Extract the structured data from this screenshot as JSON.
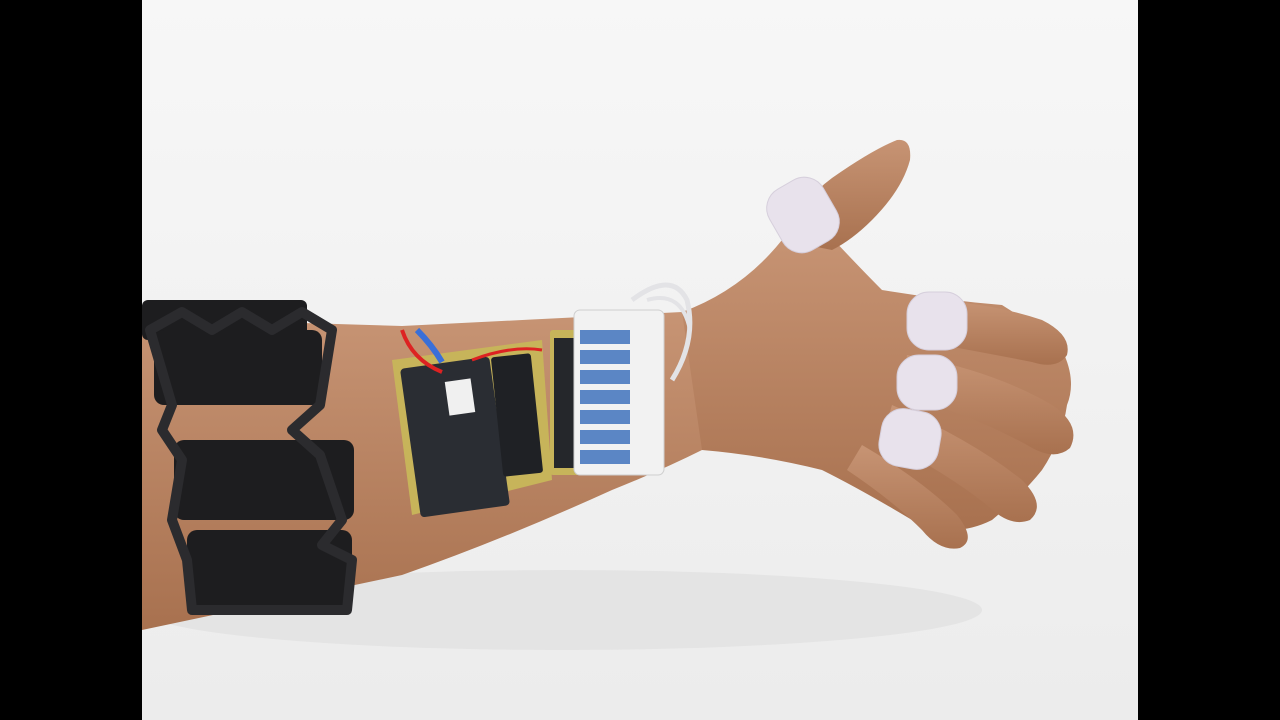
{
  "viewer": {
    "letterbox_color": "#000000"
  },
  "photo": {
    "subject": "forearm-and-hand",
    "colors": {
      "background": "#f4f4f4",
      "skin": "#c08a66",
      "skin_shadow": "#9e6a4a",
      "armband": "#1d1d1f",
      "pcb": "#c7b45a",
      "module": "#2a2d33",
      "tube_block": "#5b86c5",
      "finger_sleeve": "#e6e0ea"
    }
  }
}
